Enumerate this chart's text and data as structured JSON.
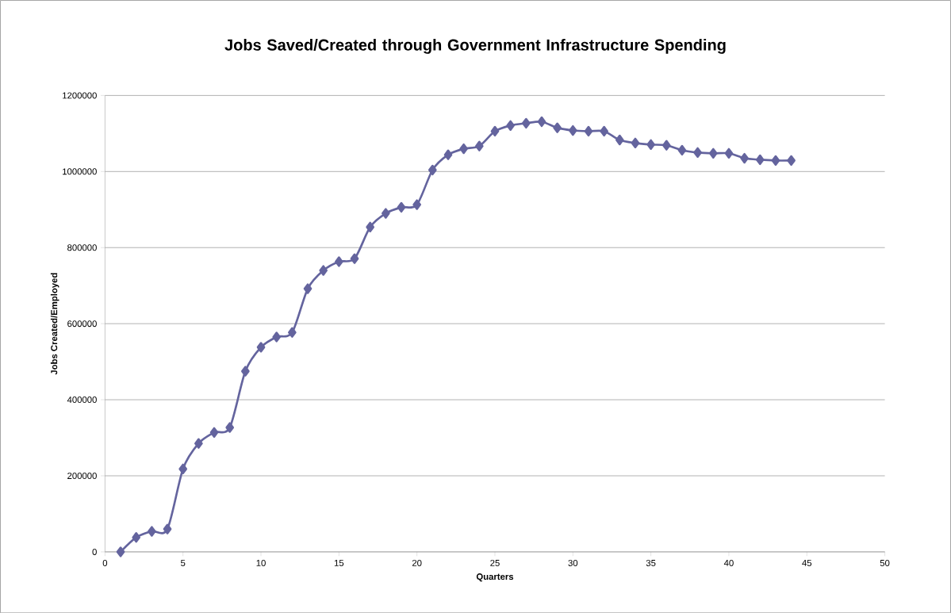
{
  "chart_data": {
    "type": "line",
    "title": "Jobs Saved/Created through Government Infrastructure Spending",
    "xlabel": "Quarters",
    "ylabel": "Jobs Created/Employed",
    "x": [
      1,
      2,
      3,
      4,
      5,
      6,
      7,
      8,
      9,
      10,
      11,
      12,
      13,
      14,
      15,
      16,
      17,
      18,
      19,
      20,
      21,
      22,
      23,
      24,
      25,
      26,
      27,
      28,
      29,
      30,
      31,
      32,
      33,
      34,
      35,
      36,
      37,
      38,
      39,
      40,
      41,
      42,
      43,
      44
    ],
    "series": [
      {
        "color": "#64649e",
        "values": [
          0,
          38000,
          54000,
          60000,
          218000,
          285000,
          314000,
          327000,
          475000,
          538000,
          565000,
          577000,
          692000,
          740000,
          763000,
          771000,
          854000,
          890000,
          906000,
          913000,
          1004000,
          1044000,
          1060000,
          1067000,
          1106000,
          1121000,
          1127000,
          1131000,
          1115000,
          1108000,
          1106000,
          1106000,
          1083000,
          1075000,
          1071000,
          1069000,
          1056000,
          1050000,
          1048000,
          1048000,
          1035000,
          1031000,
          1029000,
          1029000
        ]
      }
    ],
    "xlim": [
      0,
      50
    ],
    "xticks": [
      0,
      5,
      10,
      15,
      20,
      25,
      30,
      35,
      40,
      45,
      50
    ],
    "ylim": [
      0,
      1200000
    ],
    "yticks": [
      0,
      200000,
      400000,
      600000,
      800000,
      1000000,
      1200000
    ],
    "grid": "y",
    "marker": "diamond",
    "line_style": "solid"
  }
}
